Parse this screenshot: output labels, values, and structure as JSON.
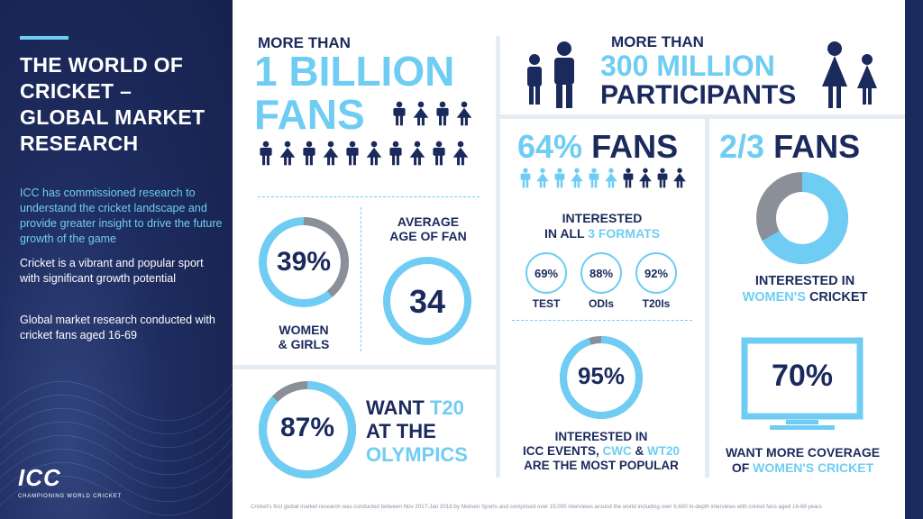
{
  "sidebar": {
    "title": "THE WORLD OF CRICKET – GLOBAL MARKET RESEARCH",
    "intro": "ICC has commissioned research to understand the cricket landscape and provide greater insight to drive the future growth of the game",
    "para2": "Cricket is a vibrant and popular sport with significant growth potential",
    "para3": "Global market research conducted with cricket fans aged 16-69",
    "logo_text": "ICC",
    "logo_tagline": "CHAMPIONING WORLD CRICKET"
  },
  "fans": {
    "more_than": "MORE THAN",
    "headline1": "1 BILLION",
    "headline2": "FANS"
  },
  "participants": {
    "more_than": "MORE THAN",
    "headline1": "300 MILLION",
    "headline2": "PARTICIPANTS"
  },
  "women": {
    "value": "39%",
    "fraction": 0.39,
    "label1": "WOMEN",
    "label2": "& GIRLS"
  },
  "age": {
    "label1": "AVERAGE",
    "label2": "AGE OF FAN",
    "value": "34"
  },
  "formats": {
    "headline_pct": "64%",
    "headline_word": "FANS",
    "label_line1": "INTERESTED",
    "label_in_all": "IN ALL",
    "label_formats": "3 FORMATS",
    "filled_fraction": 0.64,
    "items": [
      {
        "value": "69%",
        "label": "TEST"
      },
      {
        "value": "88%",
        "label": "ODIs"
      },
      {
        "value": "92%",
        "label": "T20Is"
      }
    ]
  },
  "womens_cricket": {
    "headline_frac": "2/3",
    "headline_word": "FANS",
    "fraction": 0.6667,
    "label1": "INTERESTED IN",
    "label2a": "WOMEN'S",
    "label2b": "CRICKET"
  },
  "olympics": {
    "value": "87%",
    "fraction": 0.87,
    "line1a": "WANT",
    "line1b": "T20",
    "line2": "AT THE",
    "line3": "OLYMPICS"
  },
  "icc_events": {
    "value": "95%",
    "fraction": 0.95,
    "line1": "INTERESTED IN",
    "line2a": "ICC EVENTS,",
    "line2b": "CWC",
    "line2c": "&",
    "line2d": "WT20",
    "line3": "ARE THE MOST POPULAR"
  },
  "coverage": {
    "value": "70%",
    "line1": "WANT MORE COVERAGE",
    "line2a": "OF",
    "line2b": "WOMEN'S CRICKET"
  },
  "footnote": "Cricket's first global market research was conducted between Nov 2017-Jan 2018 by Nielsen Sports and comprised over 19,000 interviews around the world including over 6,600 in-depth interviews with cricket fans aged 16-69 years",
  "colors": {
    "navy": "#1b2a5c",
    "cyan": "#6fcdf3",
    "grey": "#8a8f98"
  }
}
